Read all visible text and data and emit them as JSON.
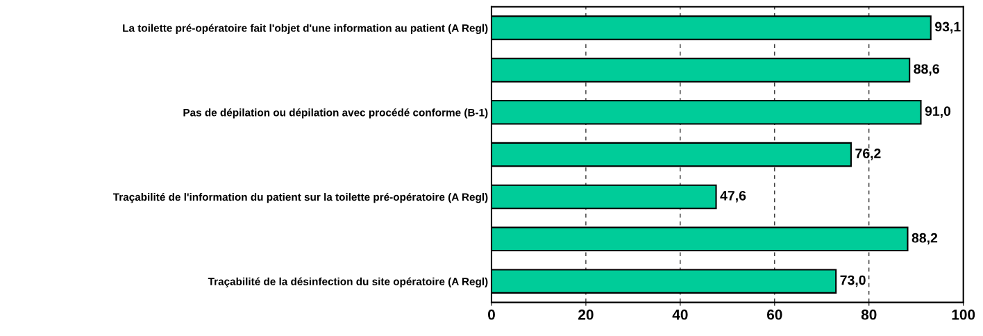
{
  "chart_data": {
    "type": "bar",
    "orientation": "horizontal",
    "categories": [
      "La toilette pré-opératoire fait l'objet d'une information au patient (A Regl)",
      null,
      "Pas de dépilation ou dépilation avec procédé conforme (B-1)",
      null,
      "Traçabilité de l'information du patient sur la toilette pré-opératoire (A Regl)",
      null,
      "Traçabilité de la désinfection du site opératoire (A Regl)"
    ],
    "values": [
      93.1,
      88.6,
      91.0,
      76.2,
      47.6,
      88.2,
      73.0
    ],
    "value_labels": [
      "93,1",
      "88,6",
      "91,0",
      "76,2",
      "47,6",
      "88,2",
      "73,0"
    ],
    "color": "#00cc99",
    "xlim": [
      0,
      100
    ],
    "xticks": [
      0,
      20,
      40,
      60,
      80,
      100
    ],
    "grid": "x"
  }
}
